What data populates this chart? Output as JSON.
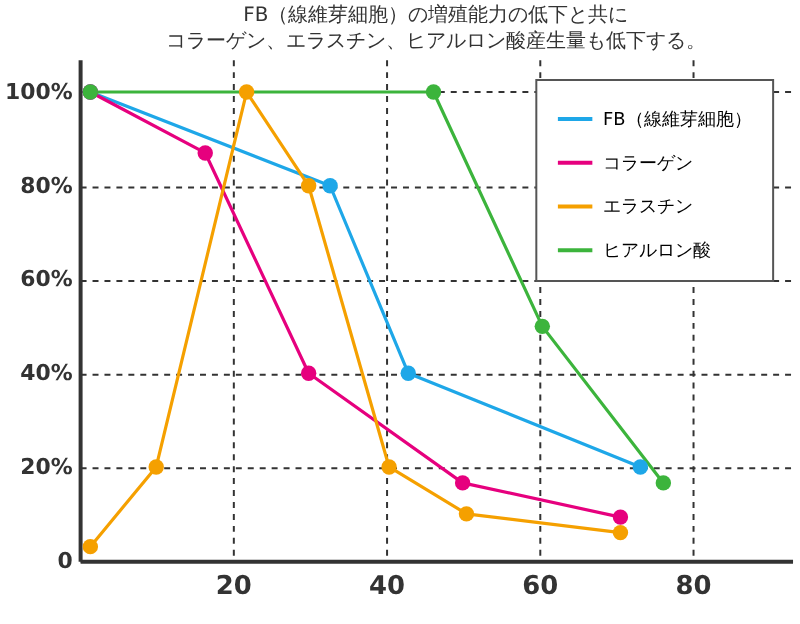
{
  "chart_data": {
    "type": "line",
    "title": "FB（線維芽細胞）の増殖能力の低下と共に",
    "subtitle": "コラーゲン、エラスチン、ヒアルロン酸産生量も低下する。",
    "xlim": [
      0,
      93
    ],
    "xticks": [
      20,
      40,
      60,
      80
    ],
    "ylim": [
      0,
      107
    ],
    "yticks": [
      {
        "value": 0,
        "label": "0"
      },
      {
        "value": 20,
        "label": "20%"
      },
      {
        "value": 40,
        "label": "40%"
      },
      {
        "value": 60,
        "label": "60%"
      },
      {
        "value": 80,
        "label": "80%"
      },
      {
        "value": 100,
        "label": "100%"
      }
    ],
    "grid": true,
    "legend": "top right",
    "marker": "circle",
    "line_style": "solid",
    "series": [
      {
        "name": "FB（線維芽細胞）",
        "color": "#1ea7e8",
        "x": [
          1.4,
          32.7,
          42.9,
          73.2
        ],
        "values": [
          100,
          80,
          40,
          20
        ]
      },
      {
        "name": "コラーゲン",
        "color": "#e6007e",
        "x": [
          1.4,
          16.4,
          29.9,
          50,
          70.6
        ],
        "values": [
          100,
          87,
          40,
          16.6,
          9.3
        ]
      },
      {
        "name": "エラスチン",
        "color": "#f5a000",
        "x": [
          1.4,
          10,
          21.8,
          29.9,
          40.4,
          50.5,
          70.6
        ],
        "values": [
          3,
          20,
          100,
          80,
          20,
          10,
          6
        ]
      },
      {
        "name": "ヒアルロン酸",
        "color": "#3cb43c",
        "x": [
          1.4,
          46.2,
          60.4,
          76.2
        ],
        "values": [
          100,
          100,
          50,
          16.6
        ]
      }
    ]
  }
}
